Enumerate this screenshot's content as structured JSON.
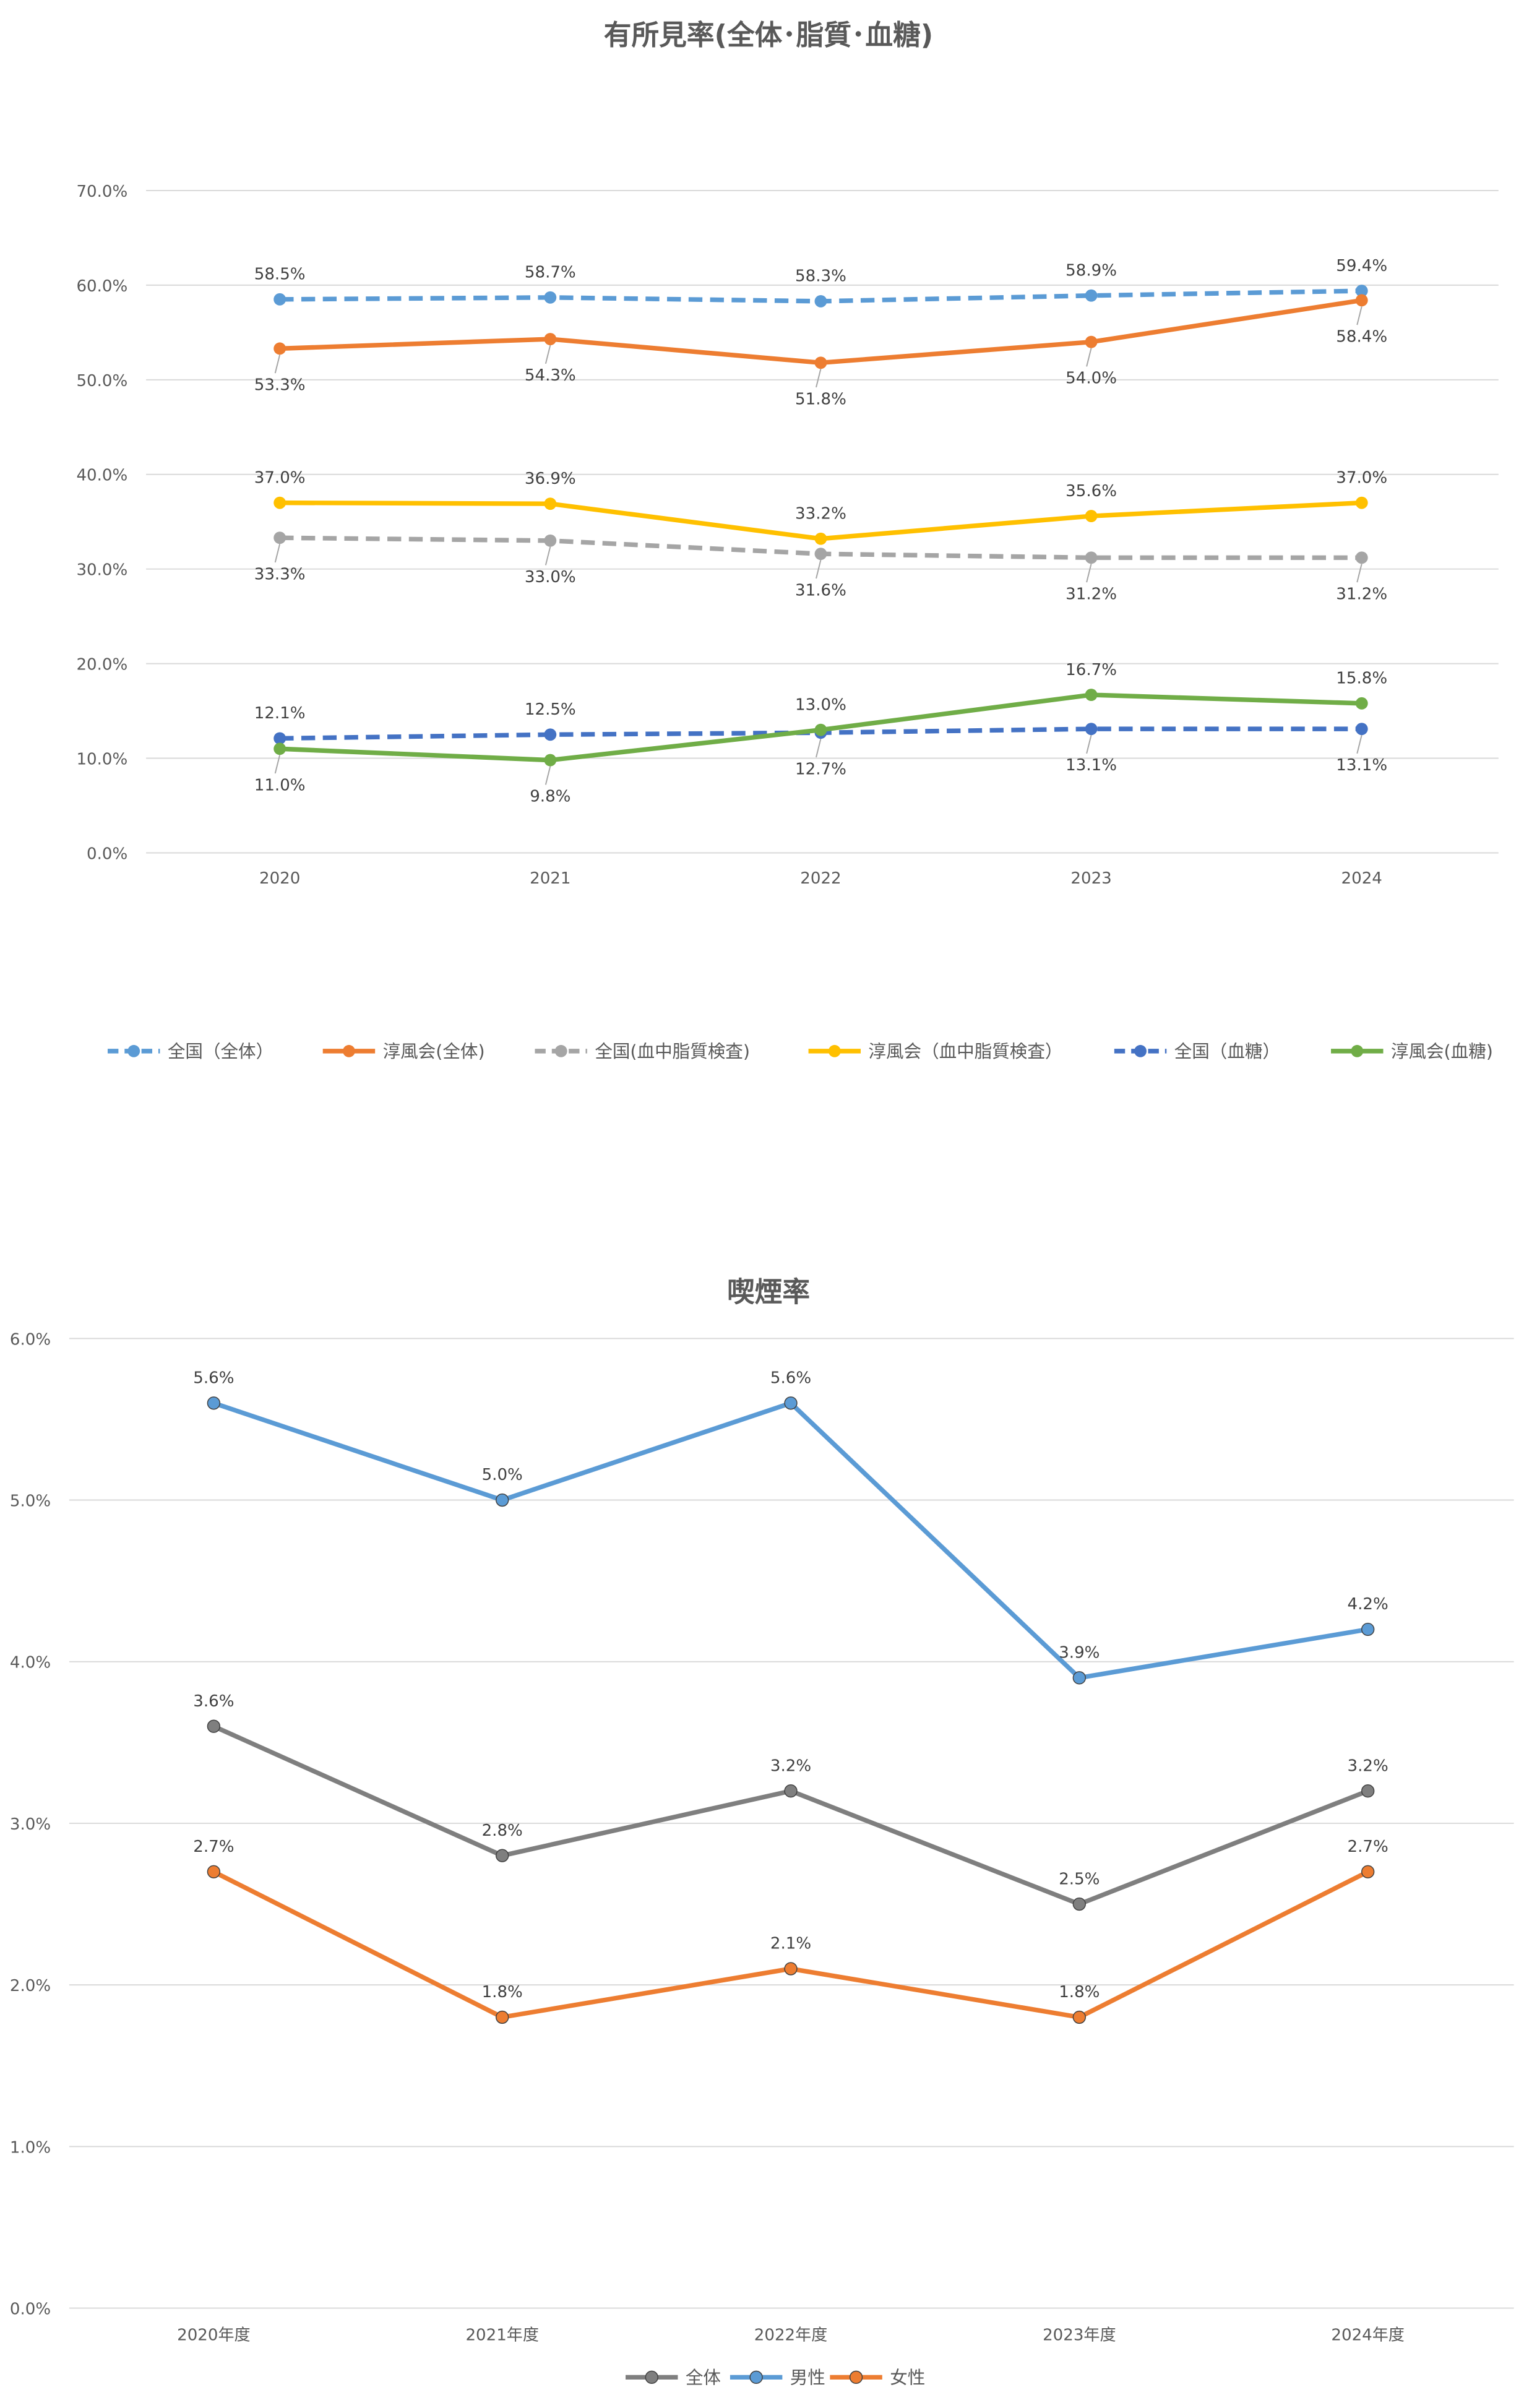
{
  "chart_data": [
    {
      "type": "line",
      "title": "有所見率(全体･脂質･血糖)",
      "categories": [
        "2020",
        "2021",
        "2022",
        "2023",
        "2024"
      ],
      "ylim": [
        0,
        70
      ],
      "yticks": [
        "0.0%",
        "10.0%",
        "20.0%",
        "30.0%",
        "40.0%",
        "50.0%",
        "60.0%",
        "70.0%"
      ],
      "grid": true,
      "legend": "bottom",
      "series": [
        {
          "name": "全国（全体）",
          "values": [
            58.5,
            58.7,
            58.3,
            58.9,
            59.4
          ],
          "labels": [
            "58.5%",
            "58.7%",
            "58.3%",
            "58.9%",
            "59.4%"
          ],
          "color": "#5b9bd5",
          "dashed": true
        },
        {
          "name": "淳風会(全体)",
          "values": [
            53.3,
            54.3,
            51.8,
            54.0,
            58.4
          ],
          "labels": [
            "53.3%",
            "54.3%",
            "51.8%",
            "54.0%",
            "58.4%"
          ],
          "color": "#ed7d31",
          "dashed": false
        },
        {
          "name": "全国(血中脂質検査)",
          "values": [
            33.3,
            33.0,
            31.6,
            31.2,
            31.2
          ],
          "labels": [
            "33.3%",
            "33.0%",
            "31.6%",
            "31.2%",
            "31.2%"
          ],
          "color": "#a5a5a5",
          "dashed": true
        },
        {
          "name": "淳風会（血中脂質検査）",
          "values": [
            37.0,
            36.9,
            33.2,
            35.6,
            37.0
          ],
          "labels": [
            "37.0%",
            "36.9%",
            "33.2%",
            "35.6%",
            "37.0%"
          ],
          "color": "#ffc000",
          "dashed": false
        },
        {
          "name": "全国（血糖）",
          "values": [
            12.1,
            12.5,
            12.7,
            13.1,
            13.1
          ],
          "labels": [
            "12.1%",
            "12.5%",
            "12.7%",
            "13.1%",
            "13.1%"
          ],
          "color": "#4472c4",
          "dashed": true
        },
        {
          "name": "淳風会(血糖)",
          "values": [
            11.0,
            9.8,
            13.0,
            16.7,
            15.8
          ],
          "labels": [
            "11.0%",
            "9.8%",
            "13.0%",
            "16.7%",
            "15.8%"
          ],
          "color": "#70ad47",
          "dashed": false
        }
      ]
    },
    {
      "type": "line",
      "title": "喫煙率",
      "categories": [
        "2020年度",
        "2021年度",
        "2022年度",
        "2023年度",
        "2024年度"
      ],
      "ylim": [
        0,
        6
      ],
      "yticks": [
        "0.0%",
        "1.0%",
        "2.0%",
        "3.0%",
        "4.0%",
        "5.0%",
        "6.0%"
      ],
      "grid": true,
      "legend": "bottom",
      "series": [
        {
          "name": "全体",
          "values": [
            3.6,
            2.8,
            3.2,
            2.5,
            3.2
          ],
          "labels": [
            "3.6%",
            "2.8%",
            "3.2%",
            "2.5%",
            "3.2%"
          ],
          "color": "#7f7f7f",
          "dashed": false
        },
        {
          "name": "男性",
          "values": [
            5.6,
            5.0,
            5.6,
            3.9,
            4.2
          ],
          "labels": [
            "5.6%",
            "5.0%",
            "5.6%",
            "3.9%",
            "4.2%"
          ],
          "color": "#5b9bd5",
          "dashed": false
        },
        {
          "name": "女性",
          "values": [
            2.7,
            1.8,
            2.1,
            1.8,
            2.7
          ],
          "labels": [
            "2.7%",
            "1.8%",
            "2.1%",
            "1.8%",
            "2.7%"
          ],
          "color": "#ed7d31",
          "dashed": false
        }
      ]
    }
  ]
}
